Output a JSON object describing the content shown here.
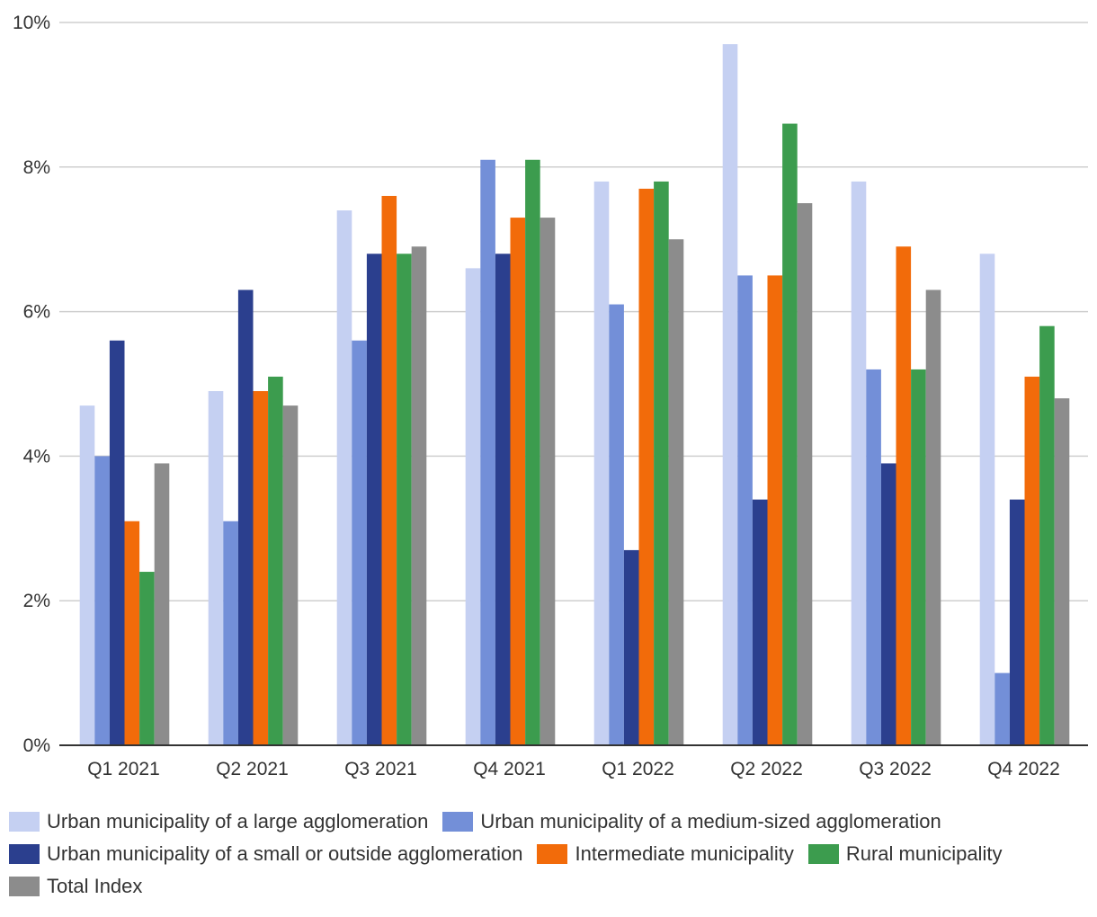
{
  "chart_data": {
    "type": "bar",
    "title": "",
    "xlabel": "",
    "ylabel": "",
    "ylim": [
      0,
      10
    ],
    "yticks": [
      0,
      2,
      4,
      6,
      8,
      10
    ],
    "ytick_labels": [
      "0%",
      "2%",
      "4%",
      "6%",
      "8%",
      "10%"
    ],
    "categories": [
      "Q1 2021",
      "Q2 2021",
      "Q3 2021",
      "Q4 2021",
      "Q1 2022",
      "Q2 2022",
      "Q3 2022",
      "Q4 2022"
    ],
    "series": [
      {
        "name": "Urban municipality of a large agglomeration",
        "color": "#c5d0f2",
        "values": [
          4.7,
          4.9,
          7.4,
          6.6,
          7.8,
          9.7,
          7.8,
          6.8
        ]
      },
      {
        "name": "Urban municipality of a medium-sized agglomeration",
        "color": "#738fd8",
        "values": [
          4.0,
          3.1,
          5.6,
          8.1,
          6.1,
          6.5,
          5.2,
          1.0
        ]
      },
      {
        "name": "Urban municipality of a small or outside agglomeration",
        "color": "#2b3f8e",
        "values": [
          5.6,
          6.3,
          6.8,
          6.8,
          2.7,
          3.4,
          3.9,
          3.4
        ]
      },
      {
        "name": "Intermediate municipality",
        "color": "#f26b0a",
        "values": [
          3.1,
          4.9,
          7.6,
          7.3,
          7.7,
          6.5,
          6.9,
          5.1
        ]
      },
      {
        "name": "Rural municipality",
        "color": "#3c9c4e",
        "values": [
          2.4,
          5.1,
          6.8,
          8.1,
          7.8,
          8.6,
          5.2,
          5.8
        ]
      },
      {
        "name": "Total Index",
        "color": "#8c8c8c",
        "values": [
          3.9,
          4.7,
          6.9,
          7.3,
          7.0,
          7.5,
          6.3,
          4.8
        ]
      }
    ],
    "grid": true,
    "legend_position": "bottom"
  }
}
